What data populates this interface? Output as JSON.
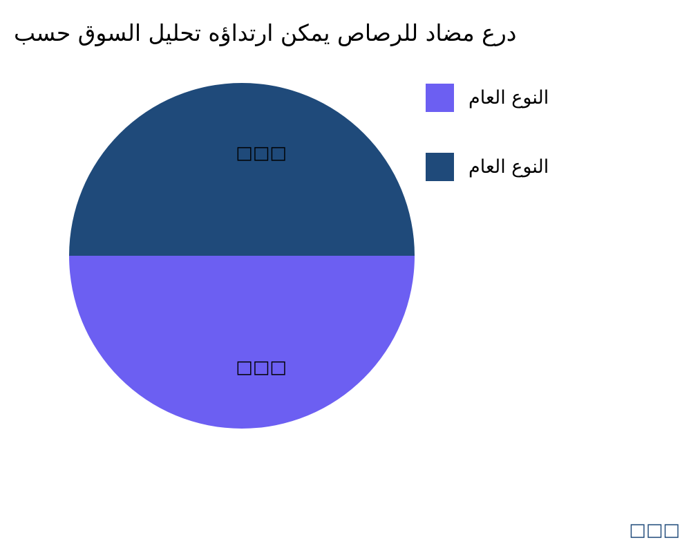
{
  "chart_data": {
    "type": "pie",
    "title": "درع مضاد للرصاص يمكن ارتداؤه تحليل السوق حسب",
    "slices": [
      {
        "name": "النوع العام",
        "value": 50,
        "label": "□□□",
        "color": "#6c5ff2"
      },
      {
        "name": "النوع العام",
        "value": 50,
        "label": "□□□",
        "color": "#1f4a7a"
      }
    ],
    "legend_position": "top-right"
  },
  "watermark": "□□□"
}
